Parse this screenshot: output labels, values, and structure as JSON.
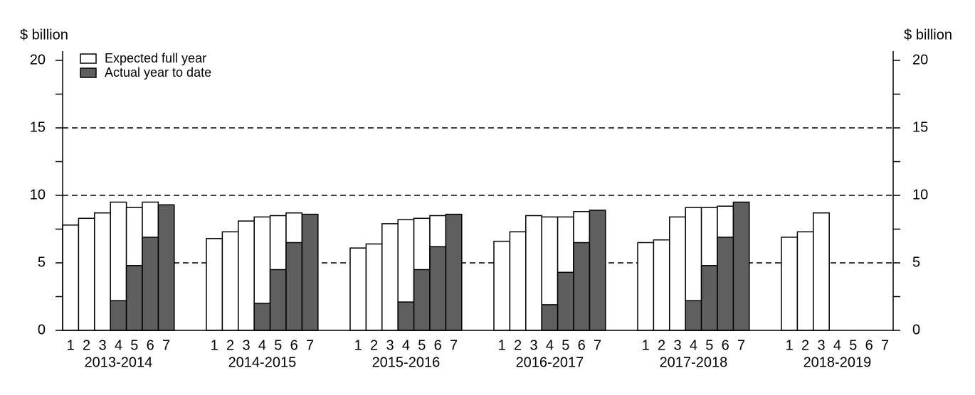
{
  "chart_data": {
    "type": "bar",
    "y_label": "$ billion",
    "y2_label": "$ billion",
    "groups": [
      "2013-2014",
      "2014-2015",
      "2015-2016",
      "2016-2017",
      "2017-2018",
      "2018-2019"
    ],
    "categories": [
      "1",
      "2",
      "3",
      "4",
      "5",
      "6",
      "7"
    ],
    "series": [
      {
        "name": "Expected full year",
        "color": "#ffffff",
        "values": [
          [
            7.8,
            8.3,
            8.7,
            9.5,
            9.1,
            9.5,
            null
          ],
          [
            6.8,
            7.3,
            8.1,
            8.4,
            8.5,
            8.7,
            null
          ],
          [
            6.1,
            6.4,
            7.9,
            8.2,
            8.3,
            8.5,
            null
          ],
          [
            6.6,
            7.3,
            8.5,
            8.4,
            8.4,
            8.8,
            null
          ],
          [
            6.5,
            6.7,
            8.4,
            9.1,
            9.1,
            9.2,
            null
          ],
          [
            6.9,
            7.3,
            8.7,
            null,
            null,
            null,
            null
          ]
        ]
      },
      {
        "name": "Actual year to date",
        "color": "#5f5f5f",
        "values": [
          [
            null,
            null,
            null,
            2.2,
            4.8,
            6.9,
            9.3
          ],
          [
            null,
            null,
            null,
            2.0,
            4.5,
            6.5,
            8.6
          ],
          [
            null,
            null,
            null,
            2.1,
            4.5,
            6.2,
            8.6
          ],
          [
            null,
            null,
            null,
            1.9,
            4.3,
            6.5,
            8.9
          ],
          [
            null,
            null,
            null,
            2.2,
            4.8,
            6.9,
            9.5
          ],
          [
            null,
            null,
            null,
            null,
            null,
            null,
            null
          ]
        ]
      }
    ],
    "ylim": [
      0,
      20
    ],
    "yticks": [
      0,
      5,
      10,
      15,
      20
    ],
    "yticks_minor": [
      2.5,
      7.5,
      12.5,
      17.5
    ],
    "y2lim": [
      0,
      20
    ],
    "y2ticks": [
      0,
      5,
      10,
      15,
      20
    ],
    "grid": true,
    "legend": "upper left"
  }
}
